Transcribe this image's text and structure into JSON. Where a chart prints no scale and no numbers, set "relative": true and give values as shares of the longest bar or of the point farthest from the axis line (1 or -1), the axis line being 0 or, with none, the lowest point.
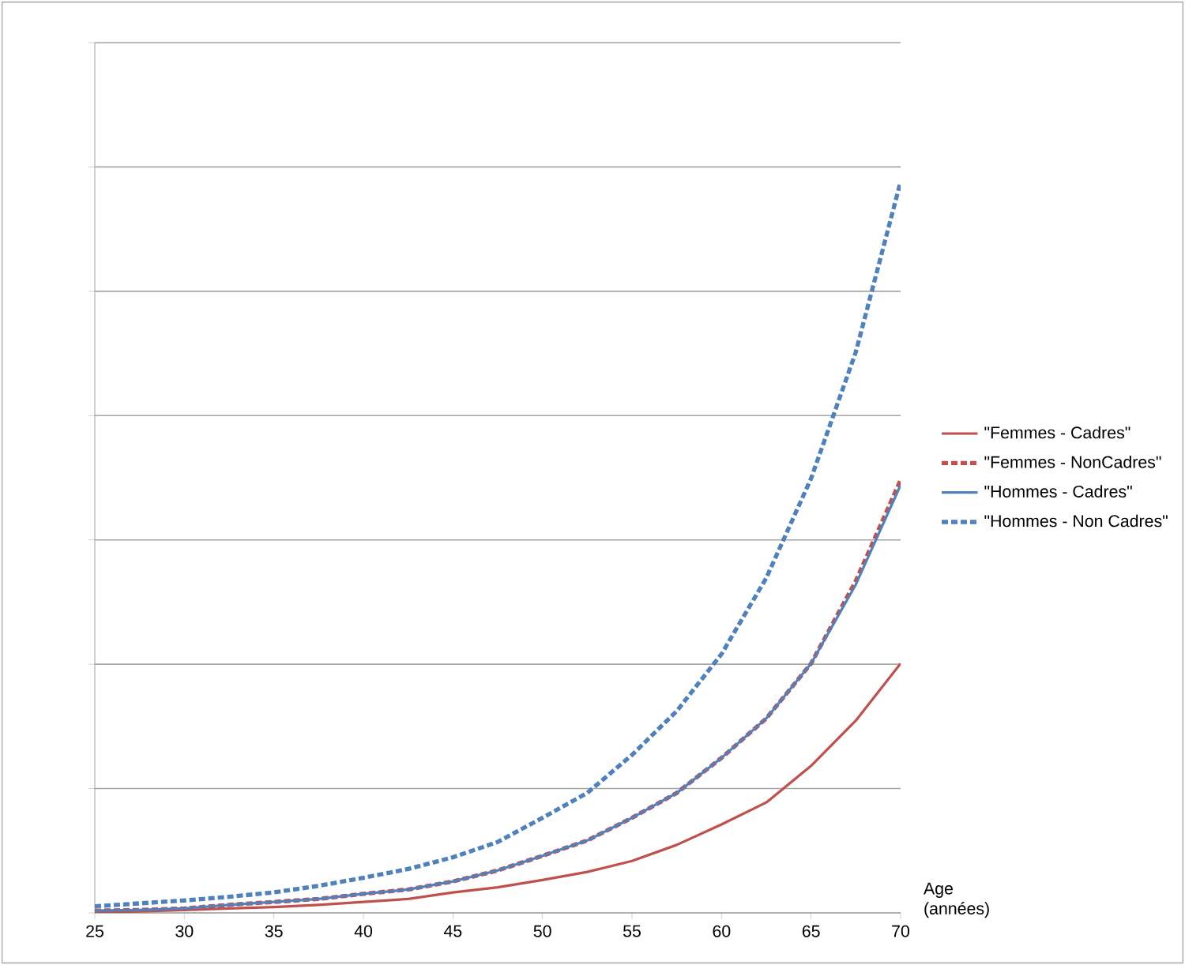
{
  "chart_data": {
    "type": "line",
    "relative": true,
    "xlabel": "Age (années)",
    "x": [
      25,
      27.5,
      30,
      32.5,
      35,
      37.5,
      40,
      42.5,
      45,
      47.5,
      50,
      52.5,
      55,
      57.5,
      60,
      62.5,
      65,
      67.5,
      70
    ],
    "xlim": [
      25,
      70
    ],
    "xticks": [
      25,
      30,
      35,
      40,
      45,
      50,
      55,
      60,
      65,
      70
    ],
    "grid": "y",
    "legend": "right",
    "marker": "none",
    "series": [
      {
        "name": "\"Femmes - Cadres\"",
        "color": "#c0504d",
        "line_style": "solid",
        "values": [
          0.001,
          0.002,
          0.004,
          0.006,
          0.008,
          0.011,
          0.015,
          0.019,
          0.028,
          0.035,
          0.045,
          0.056,
          0.071,
          0.093,
          0.121,
          0.151,
          0.201,
          0.263,
          0.341
        ]
      },
      {
        "name": "\"Femmes - NonCadres\"",
        "color": "#c0504d",
        "line_style": "dashed",
        "values": [
          0.003,
          0.004,
          0.006,
          0.011,
          0.015,
          0.019,
          0.026,
          0.032,
          0.043,
          0.058,
          0.078,
          0.099,
          0.13,
          0.164,
          0.212,
          0.266,
          0.341,
          0.454,
          0.592
        ]
      },
      {
        "name": "\"Hommes - Cadres\"",
        "color": "#4f81bd",
        "line_style": "solid",
        "values": [
          0.003,
          0.004,
          0.006,
          0.011,
          0.015,
          0.019,
          0.026,
          0.032,
          0.043,
          0.058,
          0.078,
          0.099,
          0.13,
          0.164,
          0.212,
          0.266,
          0.341,
          0.449,
          0.585
        ]
      },
      {
        "name": "\"Hommes - Non Cadres\"",
        "color": "#4f81bd",
        "line_style": "dashed",
        "values": [
          0.009,
          0.013,
          0.017,
          0.022,
          0.028,
          0.037,
          0.048,
          0.06,
          0.076,
          0.097,
          0.13,
          0.164,
          0.216,
          0.276,
          0.354,
          0.458,
          0.594,
          0.767,
          1
        ]
      }
    ]
  }
}
